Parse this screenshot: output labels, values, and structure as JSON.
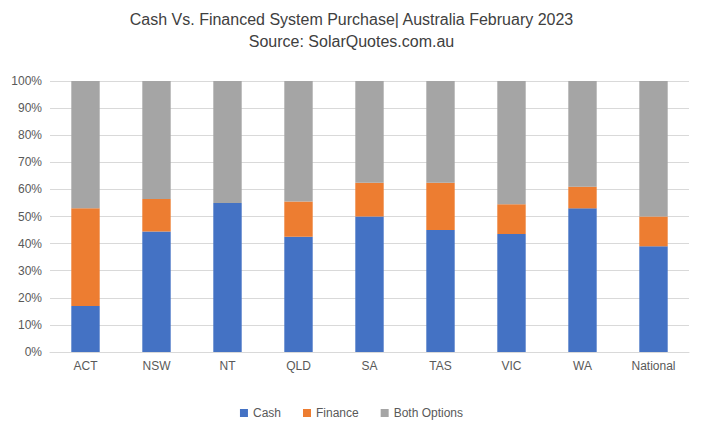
{
  "chart_data": {
    "type": "bar",
    "title": "Cash Vs. Financed System Purchase| Australia February 2023",
    "subtitle": "Source: SolarQuotes.com.au",
    "categories": [
      "ACT",
      "NSW",
      "NT",
      "QLD",
      "SA",
      "TAS",
      "VIC",
      "WA",
      "National"
    ],
    "series": [
      {
        "name": "Cash",
        "color": "#4472c4",
        "values": [
          17,
          44.5,
          55,
          42.5,
          50,
          45,
          43.5,
          53,
          39
        ]
      },
      {
        "name": "Finance",
        "color": "#ed7d31",
        "values": [
          36,
          12,
          0,
          13,
          12.5,
          17.5,
          11,
          8,
          11
        ]
      },
      {
        "name": "Both Options",
        "color": "#a5a5a5",
        "values": [
          47,
          43.5,
          45,
          44.5,
          37.5,
          37.5,
          45.5,
          39,
          50
        ]
      }
    ],
    "ylim": [
      0,
      100
    ],
    "yticks": [
      {
        "value": 0,
        "label": "0%"
      },
      {
        "value": 10,
        "label": "10%"
      },
      {
        "value": 20,
        "label": "20%"
      },
      {
        "value": 30,
        "label": "30%"
      },
      {
        "value": 40,
        "label": "40%"
      },
      {
        "value": 50,
        "label": "50%"
      },
      {
        "value": 60,
        "label": "60%"
      },
      {
        "value": 70,
        "label": "70%"
      },
      {
        "value": 80,
        "label": "80%"
      },
      {
        "value": 90,
        "label": "90%"
      },
      {
        "value": 100,
        "label": "100%"
      }
    ],
    "stacked": true,
    "grid": true,
    "legend": "bottom"
  }
}
